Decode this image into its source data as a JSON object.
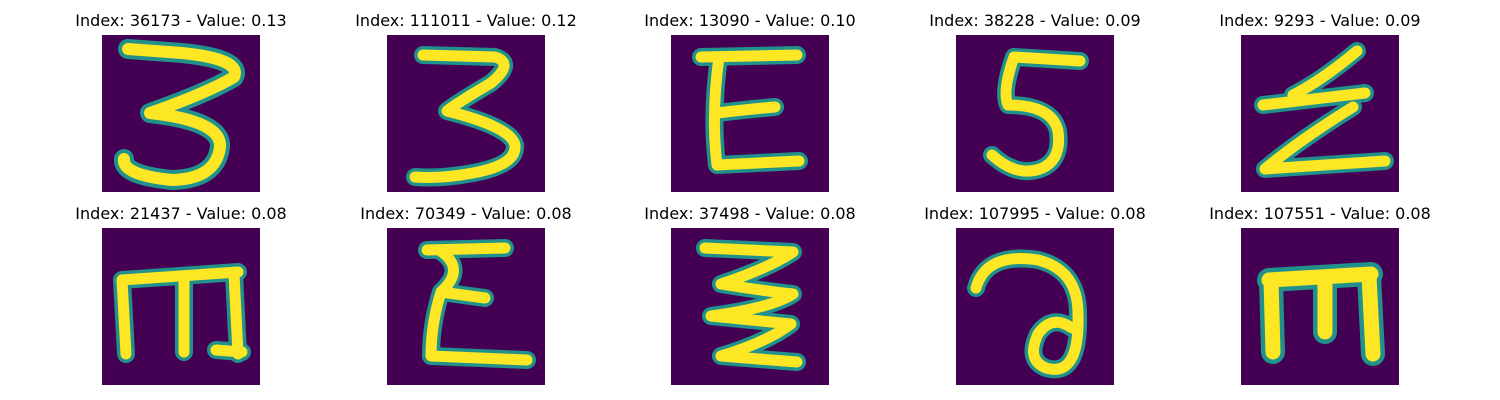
{
  "colors": {
    "background": "#440154",
    "stroke_edge": "#21918c",
    "stroke_core": "#fde725"
  },
  "grid": [
    {
      "title": "Index: 36173 - Value: 0.13",
      "glyph": "glyph-3-wide"
    },
    {
      "title": "Index: 111011 - Value: 0.12",
      "glyph": "glyph-3"
    },
    {
      "title": "Index: 13090 - Value: 0.10",
      "glyph": "glyph-E"
    },
    {
      "title": "Index: 38228 - Value: 0.09",
      "glyph": "glyph-5"
    },
    {
      "title": "Index: 9293 - Value: 0.09",
      "glyph": "glyph-z-strike"
    },
    {
      "title": "Index: 21437 - Value: 0.08",
      "glyph": "glyph-m"
    },
    {
      "title": "Index: 70349 - Value: 0.08",
      "glyph": "glyph-E-curly"
    },
    {
      "title": "Index: 37498 - Value: 0.08",
      "glyph": "glyph-3-zigzag"
    },
    {
      "title": "Index: 107995 - Value: 0.08",
      "glyph": "glyph-a-loop"
    },
    {
      "title": "Index: 107551 - Value: 0.08",
      "glyph": "glyph-m-block"
    }
  ]
}
